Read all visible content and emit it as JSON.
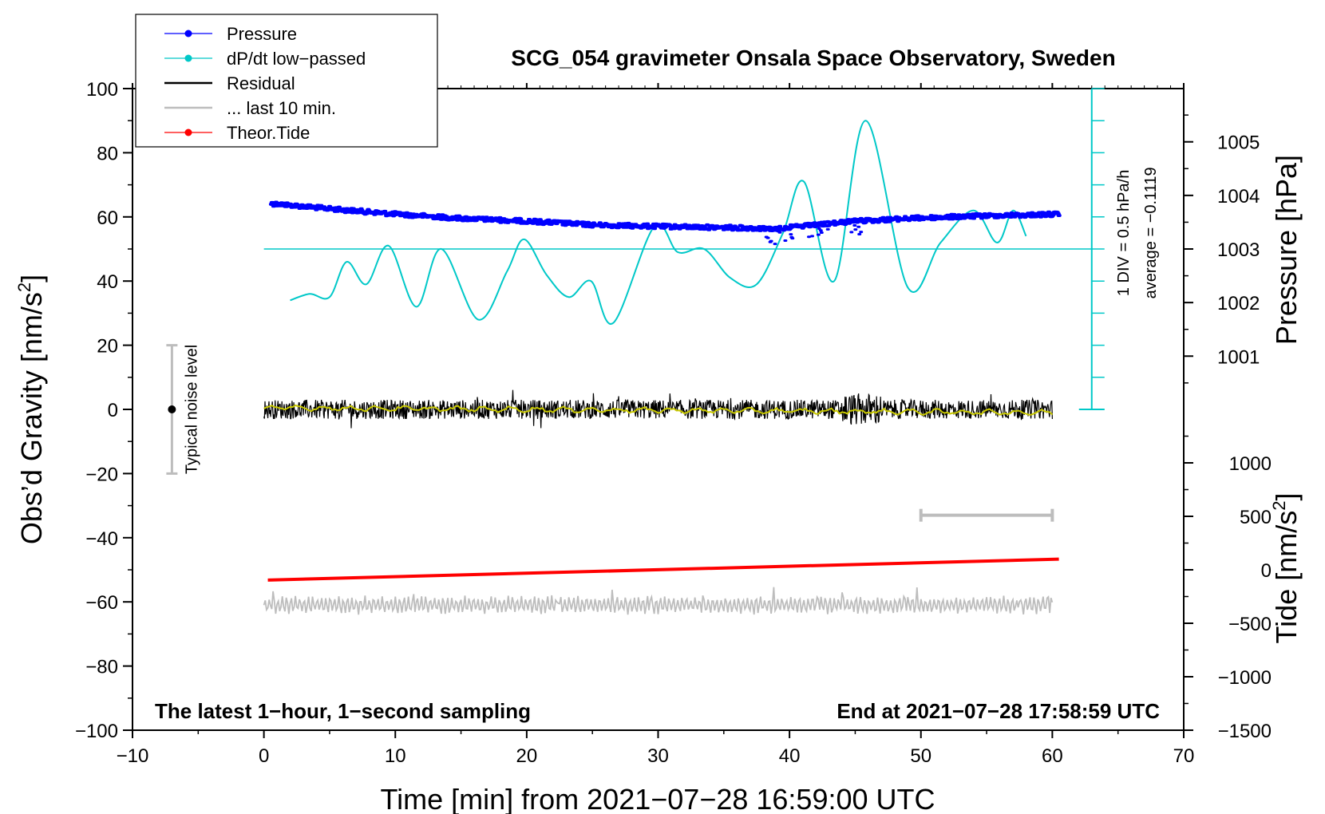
{
  "chart_data": {
    "type": "line",
    "title": "SCG_054 gravimeter Onsala Space Observatory, Sweden",
    "xlabel": "Time [min] from 2021−07−28 16:59:00 UTC",
    "ylabel_left_main": "Obs’d Gravity [nm/s",
    "ylabel_left_sup": "2",
    "ylabel_left_end": "]",
    "ylabel_right_pressure": "Pressure [hPa]",
    "ylabel_right_tide_main": "Tide [nm/s",
    "ylabel_right_tide_sup": "2",
    "ylabel_right_tide_end": "]",
    "xlim": [
      -10,
      70
    ],
    "ylim": [
      -100,
      100
    ],
    "x_ticks": [
      -10,
      0,
      10,
      20,
      30,
      40,
      50,
      60,
      70
    ],
    "x_tick_labels": [
      "−10",
      "0",
      "10",
      "20",
      "30",
      "40",
      "50",
      "60",
      "70"
    ],
    "y_ticks": [
      -100,
      -80,
      -60,
      -40,
      -20,
      0,
      20,
      40,
      60,
      80,
      100
    ],
    "y_tick_labels": [
      "−100",
      "−80",
      "−60",
      "−40",
      "−20",
      "0",
      "20",
      "40",
      "60",
      "80",
      "100"
    ],
    "pressure_axis": {
      "ticks": [
        1001,
        1002,
        1003,
        1004,
        1005
      ],
      "labels": [
        "1001",
        "1002",
        "1003",
        "1004",
        "1005"
      ],
      "gravity_of_1003": 50,
      "units_per_hpa": 16.7
    },
    "tide_axis": {
      "ticks": [
        -1500,
        -1000,
        -500,
        0,
        500,
        1000
      ],
      "labels": [
        "−1500",
        "−1000",
        "−500",
        "0",
        "500",
        "1000"
      ],
      "gravity_of_zero": -50,
      "units_per_nm": 0.03333
    },
    "legend": [
      {
        "label": "Pressure",
        "color": "#0000ff",
        "marker": true
      },
      {
        "label": "dP/dt low−passed",
        "color": "#00c8c8",
        "marker": true
      },
      {
        "label": "Residual",
        "color": "#000000",
        "marker": false
      },
      {
        "label": "... last 10 min.",
        "color": "#bdbdbd",
        "marker": false
      },
      {
        "label": "Theor.Tide",
        "color": "#ff0000",
        "marker": true
      }
    ],
    "series": [
      {
        "name": "Pressure",
        "color": "#0000ff",
        "unit": "hPa",
        "x": [
          0.5,
          5,
          10,
          15,
          20,
          25,
          30,
          35,
          39,
          42,
          45,
          50,
          55,
          60.5
        ],
        "values": [
          1003.85,
          1003.75,
          1003.65,
          1003.57,
          1003.52,
          1003.45,
          1003.42,
          1003.4,
          1003.38,
          1003.45,
          1003.52,
          1003.58,
          1003.62,
          1003.65
        ]
      },
      {
        "name": "dP/dt low−passed",
        "color": "#00c8c8",
        "unit": "nm/s2 (plot scale)",
        "x": [
          2,
          3.5,
          5,
          6.3,
          7.8,
          9.5,
          11.6,
          13.5,
          16.3,
          18.5,
          19.8,
          21.5,
          23.2,
          24.9,
          26.6,
          29.7,
          31.5,
          33.5,
          35.5,
          37.5,
          39.5,
          41.1,
          43.4,
          45.8,
          49,
          51.5,
          54,
          55.8,
          57,
          58
        ],
        "values": [
          34,
          36,
          35,
          46,
          39,
          51,
          32,
          50,
          28,
          43,
          53,
          42,
          35,
          40,
          27,
          57,
          49,
          50,
          41,
          39,
          55,
          71,
          40,
          90,
          38,
          52,
          62,
          52,
          62,
          54
        ]
      },
      {
        "name": "dP/dt average line",
        "color": "#00c8c8",
        "x": [
          0,
          63
        ],
        "values": [
          50,
          50
        ]
      },
      {
        "name": "Residual",
        "color": "#000000",
        "unit": "nm/s2",
        "x": [
          0,
          60
        ],
        "values": [
          0,
          0
        ]
      },
      {
        "name": "Residual smoothed",
        "color": "#c8c800",
        "x": [
          0,
          60
        ],
        "values": [
          0.5,
          -1
        ]
      },
      {
        "name": "... last 10 min.",
        "color": "#bdbdbd",
        "x": [
          0,
          60
        ],
        "values": [
          -61,
          -61
        ]
      },
      {
        "name": "Theor.Tide",
        "color": "#ff0000",
        "unit": "nm/s2 (tide axis)",
        "x": [
          0.3,
          60.5
        ],
        "values": [
          -96,
          100
        ]
      }
    ],
    "noise_bar": {
      "x": -7,
      "low": -20,
      "high": 20,
      "center": 0,
      "label": "Typical noise level"
    },
    "last10_bar": {
      "x1": 50,
      "x2": 60,
      "y": -33
    },
    "scale_bar": {
      "x": 63,
      "y_bottom": 0,
      "y_top": 100,
      "n_div": 10,
      "label1": "1 DIV = 0.5 hPa/h",
      "label2": "average = −0.1119"
    },
    "bottom_left_note": "The latest 1−hour, 1−second sampling",
    "bottom_right_note": "End at 2021−07−28 17:58:59 UTC"
  }
}
